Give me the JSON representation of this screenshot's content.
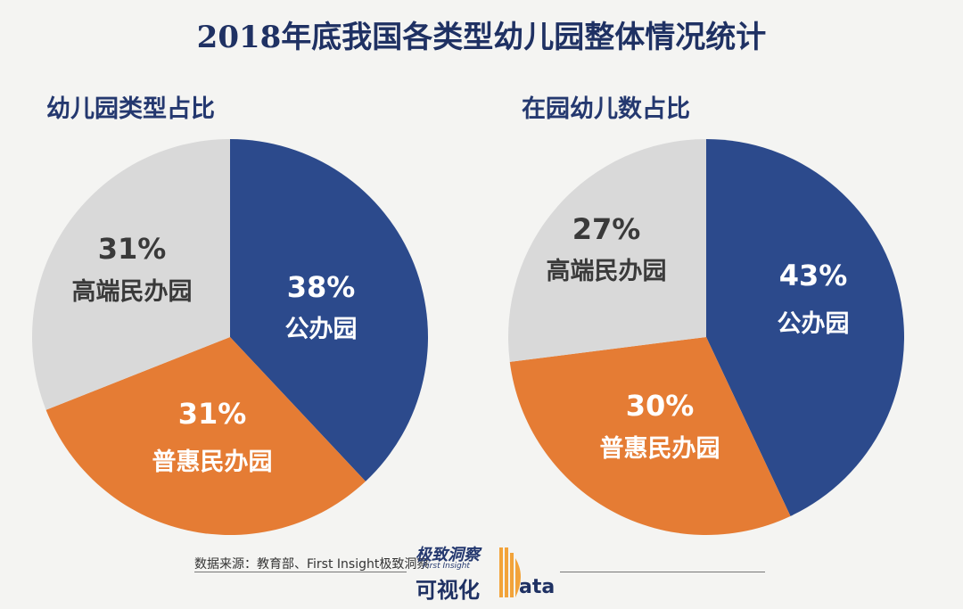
{
  "title": "2018年底我国各类型幼儿园整体情况统计",
  "chart_data": [
    {
      "type": "pie",
      "title": "幼儿园类型占比",
      "slices": [
        {
          "name": "公办园",
          "value": 38,
          "label": "38%",
          "color": "#2c4a8c",
          "text_color": "#ffffff"
        },
        {
          "name": "普惠民办园",
          "value": 31,
          "label": "31%",
          "color": "#e57c34",
          "text_color": "#ffffff"
        },
        {
          "name": "高端民办园",
          "value": 31,
          "label": "31%",
          "color": "#d9d9d9",
          "text_color": "#3a3a3a"
        }
      ]
    },
    {
      "type": "pie",
      "title": "在园幼儿数占比",
      "slices": [
        {
          "name": "公办园",
          "value": 43,
          "label": "43%",
          "color": "#2c4a8c",
          "text_color": "#ffffff"
        },
        {
          "name": "普惠民办园",
          "value": 30,
          "label": "30%",
          "color": "#e57c34",
          "text_color": "#ffffff"
        },
        {
          "name": "高端民办园",
          "value": 27,
          "label": "27%",
          "color": "#d9d9d9",
          "text_color": "#3a3a3a"
        }
      ]
    }
  ],
  "source": "数据来源：教育部、First Insight极致洞察",
  "logo": {
    "brand": "极致洞察",
    "brand_en": "First Insight",
    "visual": "可视化",
    "data_rest": "ata"
  }
}
